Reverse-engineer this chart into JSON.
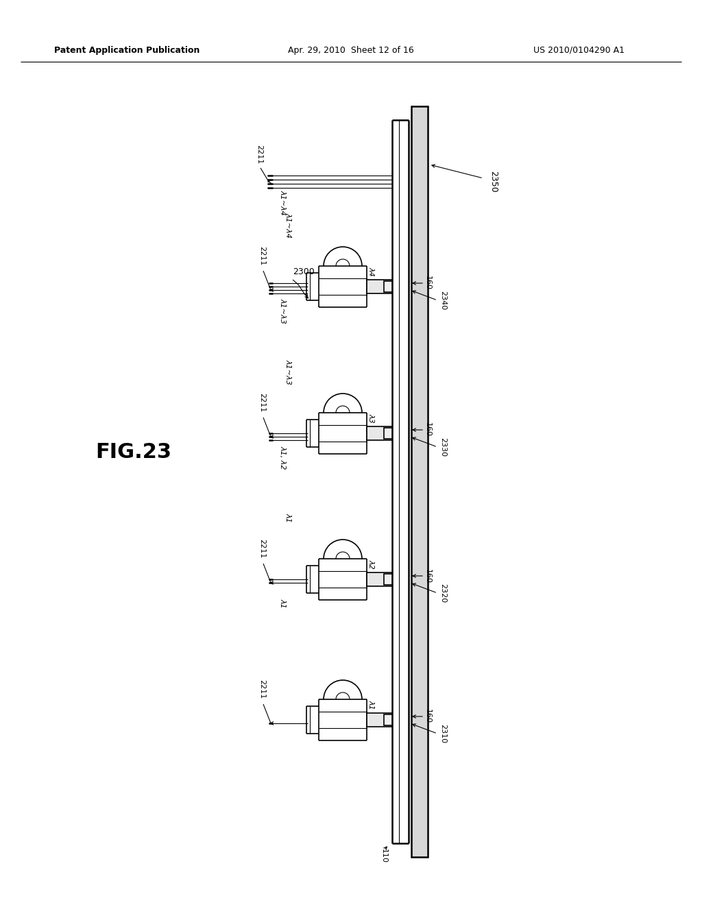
{
  "bg_color": "#ffffff",
  "line_color": "#000000",
  "header_left": "Patent Application Publication",
  "header_center": "Apr. 29, 2010  Sheet 12 of 16",
  "header_right": "US 2010/0104290 A1",
  "fig_label": "FIG.23"
}
